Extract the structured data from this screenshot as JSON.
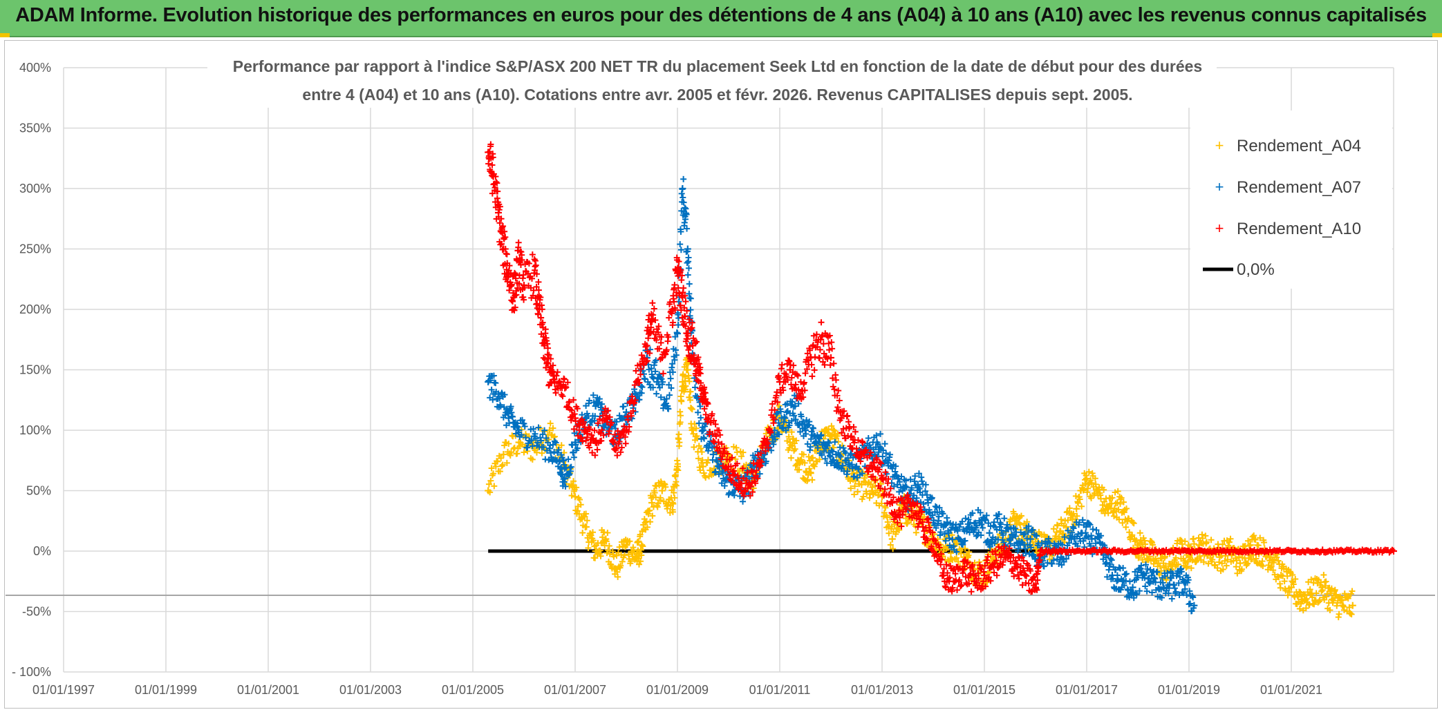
{
  "banner_title": "ADAM Informe. Evolution historique des performances en euros pour des détentions de 4 ans (A04) à 10 ans (A10) avec les revenus connus capitalisés",
  "colors": {
    "banner": "#6cc46c",
    "a04": "#ffc000",
    "a07": "#0070c0",
    "a10": "#ff0000",
    "zero": "#000000",
    "grid": "#d9d9d9"
  },
  "chart_data": {
    "type": "scatter",
    "title_line1": "Performance par rapport à l'indice S&P/ASX 200 NET TR  du placement Seek Ltd en fonction de la date de début pour des durées",
    "title_line2": "entre 4 (A04) et 10 ans (A10). Cotations entre avr. 2005 et févr. 2026. Revenus CAPITALISES depuis sept. 2005.",
    "xlim": [
      1997.0,
      2023.0
    ],
    "ylim": [
      -100,
      400
    ],
    "x_ticks": [
      {
        "value": 1997.0,
        "label": "01/01/1997"
      },
      {
        "value": 1999.0,
        "label": "01/01/1999"
      },
      {
        "value": 2001.0,
        "label": "01/01/2001"
      },
      {
        "value": 2003.0,
        "label": "01/01/2003"
      },
      {
        "value": 2005.0,
        "label": "01/01/2005"
      },
      {
        "value": 2007.0,
        "label": "01/01/2007"
      },
      {
        "value": 2009.0,
        "label": "01/01/2009"
      },
      {
        "value": 2011.0,
        "label": "01/01/2011"
      },
      {
        "value": 2013.0,
        "label": "01/01/2013"
      },
      {
        "value": 2015.0,
        "label": "01/01/2015"
      },
      {
        "value": 2017.0,
        "label": "01/01/2017"
      },
      {
        "value": 2019.0,
        "label": "01/01/2019"
      },
      {
        "value": 2021.0,
        "label": "01/01/2021"
      }
    ],
    "y_ticks": [
      {
        "value": 400,
        "label": "400%"
      },
      {
        "value": 350,
        "label": "350%"
      },
      {
        "value": 300,
        "label": "300%"
      },
      {
        "value": 250,
        "label": "250%"
      },
      {
        "value": 200,
        "label": "200%"
      },
      {
        "value": 150,
        "label": "150%"
      },
      {
        "value": 100,
        "label": "100%"
      },
      {
        "value": 50,
        "label": "50%"
      },
      {
        "value": 0,
        "label": "0%"
      },
      {
        "value": -50,
        "label": "-50%"
      },
      {
        "value": -100,
        "label": "- 100%"
      }
    ],
    "legend_position": "top-right",
    "series": [
      {
        "name": "Rendement_A04",
        "color_key": "a04",
        "points": [
          [
            2005.3,
            50
          ],
          [
            2005.6,
            80
          ],
          [
            2005.9,
            90
          ],
          [
            2006.2,
            85
          ],
          [
            2006.5,
            100
          ],
          [
            2006.8,
            70
          ],
          [
            2007.0,
            45
          ],
          [
            2007.2,
            20
          ],
          [
            2007.4,
            0
          ],
          [
            2007.6,
            10
          ],
          [
            2007.8,
            -15
          ],
          [
            2008.0,
            5
          ],
          [
            2008.2,
            -5
          ],
          [
            2008.3,
            5
          ],
          [
            2008.5,
            40
          ],
          [
            2008.7,
            50
          ],
          [
            2008.9,
            40
          ],
          [
            2009.0,
            70
          ],
          [
            2009.1,
            140
          ],
          [
            2009.2,
            150
          ],
          [
            2009.3,
            100
          ],
          [
            2009.5,
            70
          ],
          [
            2009.8,
            75
          ],
          [
            2010.0,
            80
          ],
          [
            2010.3,
            70
          ],
          [
            2010.5,
            60
          ],
          [
            2010.8,
            95
          ],
          [
            2011.0,
            110
          ],
          [
            2011.2,
            90
          ],
          [
            2011.4,
            75
          ],
          [
            2011.6,
            65
          ],
          [
            2011.8,
            90
          ],
          [
            2012.0,
            95
          ],
          [
            2012.2,
            80
          ],
          [
            2012.4,
            60
          ],
          [
            2012.6,
            55
          ],
          [
            2012.8,
            50
          ],
          [
            2013.0,
            45
          ],
          [
            2013.2,
            10
          ],
          [
            2013.4,
            35
          ],
          [
            2013.6,
            30
          ],
          [
            2013.8,
            20
          ],
          [
            2014.0,
            10
          ],
          [
            2014.2,
            0
          ],
          [
            2014.4,
            5
          ],
          [
            2014.6,
            -5
          ],
          [
            2014.8,
            -15
          ],
          [
            2015.0,
            -20
          ],
          [
            2015.2,
            0
          ],
          [
            2015.4,
            5
          ],
          [
            2015.6,
            25
          ],
          [
            2015.8,
            15
          ],
          [
            2016.0,
            10
          ],
          [
            2016.2,
            0
          ],
          [
            2016.4,
            10
          ],
          [
            2016.6,
            20
          ],
          [
            2016.8,
            35
          ],
          [
            2017.0,
            60
          ],
          [
            2017.2,
            50
          ],
          [
            2017.4,
            35
          ],
          [
            2017.6,
            40
          ],
          [
            2017.8,
            25
          ],
          [
            2018.0,
            5
          ],
          [
            2018.2,
            0
          ],
          [
            2018.4,
            -10
          ],
          [
            2018.6,
            -15
          ],
          [
            2018.8,
            0
          ],
          [
            2019.0,
            -5
          ],
          [
            2019.2,
            5
          ],
          [
            2019.4,
            0
          ],
          [
            2019.6,
            -5
          ],
          [
            2019.8,
            0
          ],
          [
            2020.0,
            -10
          ],
          [
            2020.2,
            5
          ],
          [
            2020.4,
            0
          ],
          [
            2020.6,
            -5
          ],
          [
            2020.8,
            -20
          ],
          [
            2021.0,
            -30
          ],
          [
            2021.2,
            -40
          ],
          [
            2021.4,
            -35
          ],
          [
            2021.6,
            -30
          ],
          [
            2021.8,
            -40
          ],
          [
            2022.0,
            -45
          ],
          [
            2022.2,
            -45
          ]
        ]
      },
      {
        "name": "Rendement_A07",
        "color_key": "a07",
        "points": [
          [
            2005.3,
            140
          ],
          [
            2005.5,
            130
          ],
          [
            2005.7,
            110
          ],
          [
            2005.9,
            100
          ],
          [
            2006.2,
            95
          ],
          [
            2006.5,
            85
          ],
          [
            2006.7,
            75
          ],
          [
            2006.8,
            60
          ],
          [
            2007.0,
            90
          ],
          [
            2007.2,
            110
          ],
          [
            2007.4,
            120
          ],
          [
            2007.6,
            105
          ],
          [
            2007.8,
            95
          ],
          [
            2008.0,
            115
          ],
          [
            2008.2,
            125
          ],
          [
            2008.4,
            160
          ],
          [
            2008.6,
            140
          ],
          [
            2008.8,
            120
          ],
          [
            2009.0,
            180
          ],
          [
            2009.1,
            300
          ],
          [
            2009.2,
            250
          ],
          [
            2009.3,
            160
          ],
          [
            2009.5,
            100
          ],
          [
            2009.7,
            80
          ],
          [
            2009.9,
            60
          ],
          [
            2010.1,
            55
          ],
          [
            2010.3,
            50
          ],
          [
            2010.5,
            70
          ],
          [
            2010.7,
            80
          ],
          [
            2010.9,
            100
          ],
          [
            2011.1,
            110
          ],
          [
            2011.3,
            120
          ],
          [
            2011.5,
            100
          ],
          [
            2011.7,
            90
          ],
          [
            2011.9,
            85
          ],
          [
            2012.1,
            80
          ],
          [
            2012.3,
            75
          ],
          [
            2012.5,
            70
          ],
          [
            2012.7,
            80
          ],
          [
            2012.9,
            90
          ],
          [
            2013.1,
            75
          ],
          [
            2013.3,
            55
          ],
          [
            2013.5,
            45
          ],
          [
            2013.7,
            55
          ],
          [
            2013.9,
            40
          ],
          [
            2014.1,
            25
          ],
          [
            2014.3,
            15
          ],
          [
            2014.5,
            10
          ],
          [
            2014.7,
            20
          ],
          [
            2014.9,
            25
          ],
          [
            2015.1,
            15
          ],
          [
            2015.3,
            20
          ],
          [
            2015.5,
            10
          ],
          [
            2015.7,
            5
          ],
          [
            2015.9,
            10
          ],
          [
            2016.1,
            -5
          ],
          [
            2016.3,
            0
          ],
          [
            2016.5,
            -5
          ],
          [
            2016.7,
            10
          ],
          [
            2016.9,
            15
          ],
          [
            2017.1,
            10
          ],
          [
            2017.3,
            0
          ],
          [
            2017.5,
            -20
          ],
          [
            2017.7,
            -25
          ],
          [
            2017.9,
            -30
          ],
          [
            2018.1,
            -20
          ],
          [
            2018.3,
            -25
          ],
          [
            2018.5,
            -30
          ],
          [
            2018.7,
            -28
          ],
          [
            2018.9,
            -25
          ],
          [
            2019.1,
            -45
          ]
        ]
      },
      {
        "name": "Rendement_A10",
        "color_key": "a10",
        "points": [
          [
            2005.3,
            330
          ],
          [
            2005.4,
            310
          ],
          [
            2005.5,
            280
          ],
          [
            2005.6,
            250
          ],
          [
            2005.7,
            230
          ],
          [
            2005.8,
            210
          ],
          [
            2005.9,
            240
          ],
          [
            2006.0,
            220
          ],
          [
            2006.2,
            230
          ],
          [
            2006.3,
            200
          ],
          [
            2006.4,
            170
          ],
          [
            2006.5,
            150
          ],
          [
            2006.6,
            140
          ],
          [
            2006.8,
            135
          ],
          [
            2007.0,
            110
          ],
          [
            2007.2,
            100
          ],
          [
            2007.4,
            90
          ],
          [
            2007.6,
            110
          ],
          [
            2007.8,
            85
          ],
          [
            2008.0,
            100
          ],
          [
            2008.2,
            140
          ],
          [
            2008.4,
            170
          ],
          [
            2008.5,
            190
          ],
          [
            2008.7,
            160
          ],
          [
            2008.9,
            200
          ],
          [
            2009.0,
            230
          ],
          [
            2009.1,
            210
          ],
          [
            2009.2,
            180
          ],
          [
            2009.3,
            170
          ],
          [
            2009.4,
            150
          ],
          [
            2009.5,
            130
          ],
          [
            2009.6,
            110
          ],
          [
            2009.8,
            90
          ],
          [
            2010.0,
            70
          ],
          [
            2010.2,
            60
          ],
          [
            2010.4,
            55
          ],
          [
            2010.6,
            70
          ],
          [
            2010.8,
            100
          ],
          [
            2011.0,
            140
          ],
          [
            2011.2,
            150
          ],
          [
            2011.4,
            130
          ],
          [
            2011.6,
            160
          ],
          [
            2011.8,
            175
          ],
          [
            2012.0,
            160
          ],
          [
            2012.2,
            110
          ],
          [
            2012.4,
            95
          ],
          [
            2012.6,
            80
          ],
          [
            2012.8,
            70
          ],
          [
            2013.0,
            60
          ],
          [
            2013.2,
            40
          ],
          [
            2013.4,
            30
          ],
          [
            2013.6,
            40
          ],
          [
            2013.8,
            20
          ],
          [
            2014.0,
            10
          ],
          [
            2014.2,
            -20
          ],
          [
            2014.4,
            -25
          ],
          [
            2014.6,
            -15
          ],
          [
            2014.8,
            -25
          ],
          [
            2015.0,
            -20
          ],
          [
            2015.2,
            -10
          ],
          [
            2015.4,
            -5
          ],
          [
            2015.6,
            -10
          ],
          [
            2015.8,
            -20
          ],
          [
            2016.0,
            -30
          ],
          [
            2016.1,
            0
          ],
          [
            2016.5,
            0
          ],
          [
            2017.0,
            0
          ],
          [
            2017.5,
            0
          ],
          [
            2018.0,
            0
          ],
          [
            2018.5,
            0
          ],
          [
            2019.0,
            0
          ],
          [
            2019.5,
            0
          ],
          [
            2020.0,
            0
          ],
          [
            2020.5,
            0
          ],
          [
            2021.0,
            0
          ],
          [
            2021.5,
            0
          ],
          [
            2022.0,
            0
          ],
          [
            2022.5,
            0
          ],
          [
            2023.0,
            0
          ]
        ]
      }
    ],
    "reference_line": {
      "name": "0,0%",
      "y": 0,
      "x_start": 2005.3,
      "x_end": 2023.0,
      "color_key": "zero"
    }
  }
}
